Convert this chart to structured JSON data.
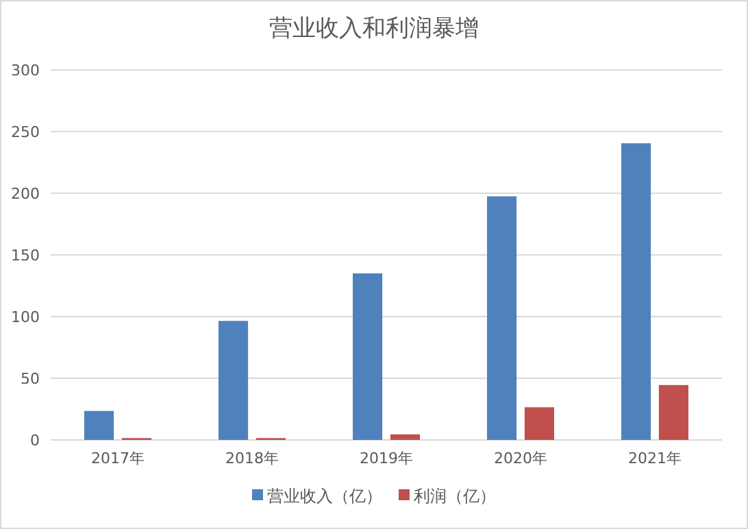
{
  "chart_data": {
    "type": "bar",
    "title": "营业收入和利润暴增",
    "categories": [
      "2017年",
      "2018年",
      "2019年",
      "2020年",
      "2021年"
    ],
    "series": [
      {
        "name": "营业收入（亿）",
        "color": "#4f81bd",
        "values": [
          23.5,
          96.5,
          135,
          197.5,
          240.5
        ]
      },
      {
        "name": "利润（亿）",
        "color": "#c0504d",
        "values": [
          1.5,
          1.5,
          4.5,
          26.5,
          44.5
        ]
      }
    ],
    "ylim": [
      0,
      300
    ],
    "yticks": [
      0,
      50,
      100,
      150,
      200,
      250,
      300
    ],
    "grid": "y",
    "legend": "bottom"
  }
}
